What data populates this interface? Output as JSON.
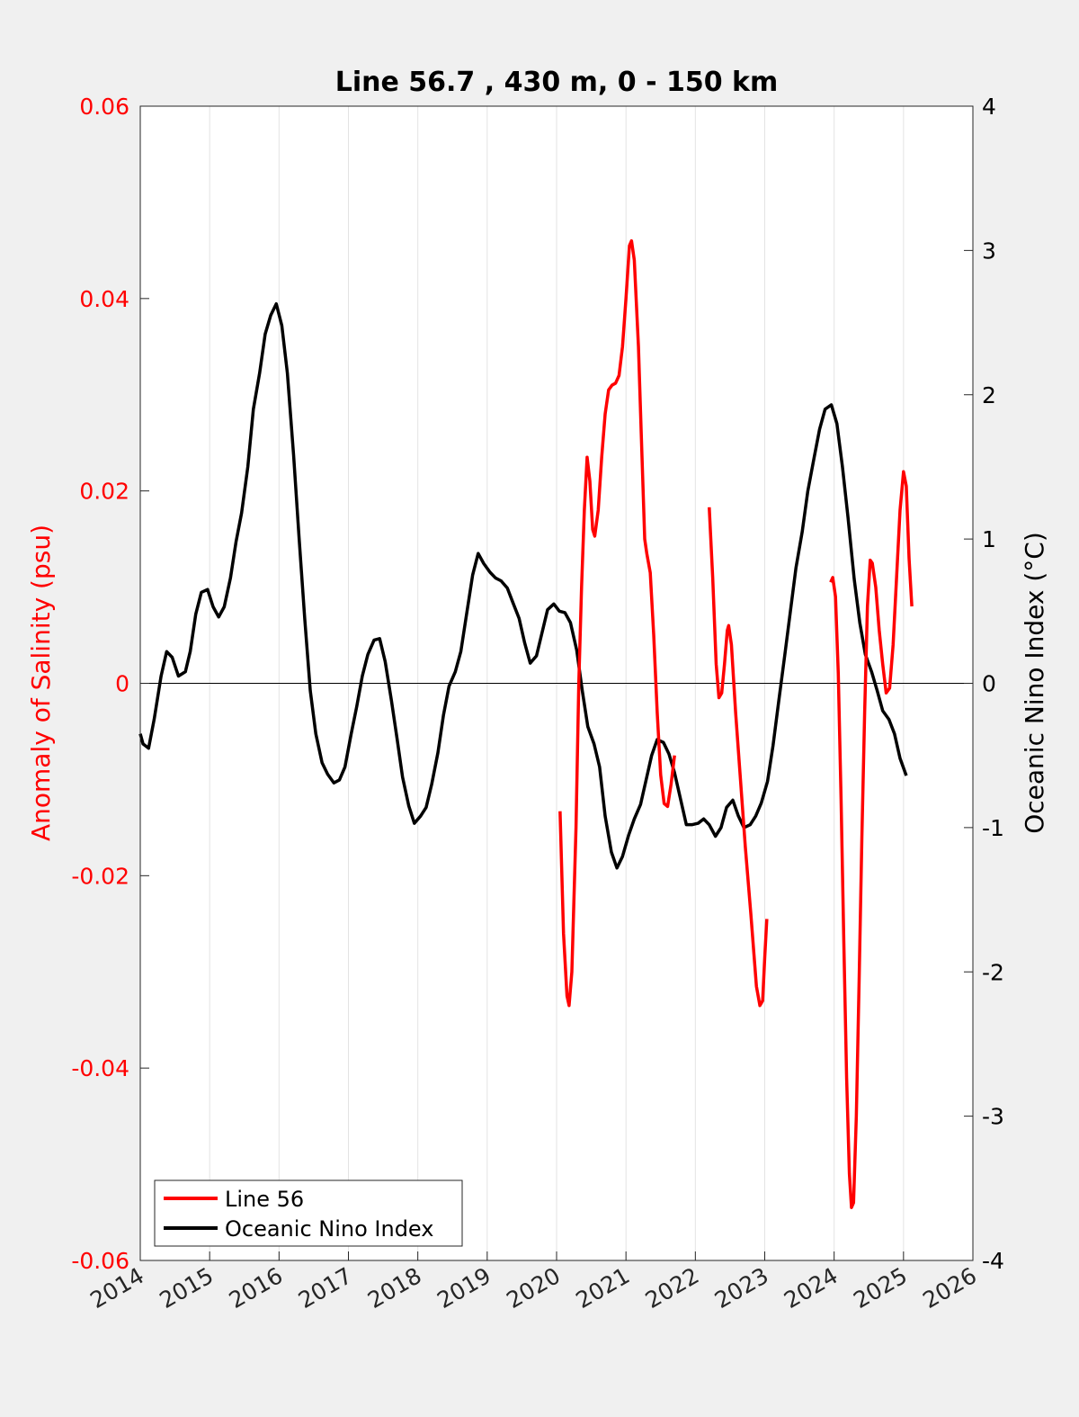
{
  "chart_data": {
    "type": "line",
    "title": "Line 56.7 , 430 m, 0 - 150 km",
    "xlabel": "",
    "ylabel_left": "Anomaly of Salinity (psu)",
    "ylabel_right": "Oceanic Nino Index (°C)",
    "xlim": [
      2014,
      2026
    ],
    "ylim_left": [
      -0.06,
      0.06
    ],
    "ylim_right": [
      -4,
      4
    ],
    "x_ticks": [
      "2014",
      "2015",
      "2016",
      "2017",
      "2018",
      "2019",
      "2020",
      "2021",
      "2022",
      "2023",
      "2024",
      "2025",
      "2026"
    ],
    "y_left_ticks": [
      "-0.06",
      "-0.04",
      "-0.02",
      "0",
      "0.02",
      "0.04",
      "0.06"
    ],
    "y_right_ticks": [
      "-4",
      "-3",
      "-2",
      "-1",
      "0",
      "1",
      "2",
      "3",
      "4"
    ],
    "grid": "vertical",
    "legend_position": "bottom-left",
    "colors": {
      "salinity": "#ff0000",
      "oni": "#000000",
      "left_axis": "#ff0000",
      "right_axis": "#000000"
    },
    "series": [
      {
        "name": "Line 56",
        "axis": "left",
        "segments": [
          [
            [
              2020.05,
              -0.0133
            ],
            [
              2020.1,
              -0.026
            ],
            [
              2020.15,
              -0.0325
            ],
            [
              2020.18,
              -0.0335
            ],
            [
              2020.22,
              -0.03
            ],
            [
              2020.28,
              -0.015
            ],
            [
              2020.32,
              0.0
            ],
            [
              2020.36,
              0.01
            ],
            [
              2020.4,
              0.018
            ],
            [
              2020.44,
              0.0235
            ],
            [
              2020.48,
              0.021
            ],
            [
              2020.52,
              0.016
            ],
            [
              2020.55,
              0.0153
            ],
            [
              2020.6,
              0.018
            ],
            [
              2020.65,
              0.0235
            ],
            [
              2020.7,
              0.028
            ],
            [
              2020.75,
              0.0305
            ],
            [
              2020.8,
              0.031
            ],
            [
              2020.85,
              0.0312
            ],
            [
              2020.9,
              0.032
            ],
            [
              2020.95,
              0.035
            ],
            [
              2021.0,
              0.04
            ],
            [
              2021.05,
              0.0455
            ],
            [
              2021.08,
              0.046
            ],
            [
              2021.12,
              0.044
            ],
            [
              2021.18,
              0.035
            ],
            [
              2021.22,
              0.026
            ],
            [
              2021.27,
              0.015
            ],
            [
              2021.3,
              0.0135
            ],
            [
              2021.35,
              0.0115
            ],
            [
              2021.4,
              0.005
            ],
            [
              2021.45,
              -0.003
            ],
            [
              2021.5,
              -0.0095
            ],
            [
              2021.55,
              -0.0125
            ],
            [
              2021.6,
              -0.0128
            ],
            [
              2021.65,
              -0.0105
            ],
            [
              2021.7,
              -0.0075
            ]
          ],
          [
            [
              2022.2,
              0.0183
            ],
            [
              2022.25,
              0.011
            ],
            [
              2022.3,
              0.002
            ],
            [
              2022.34,
              -0.0015
            ],
            [
              2022.38,
              -0.001
            ],
            [
              2022.42,
              0.002
            ],
            [
              2022.46,
              0.0055
            ],
            [
              2022.48,
              0.006
            ],
            [
              2022.52,
              0.004
            ],
            [
              2022.58,
              -0.003
            ],
            [
              2022.65,
              -0.01
            ],
            [
              2022.72,
              -0.017
            ],
            [
              2022.8,
              -0.024
            ],
            [
              2022.88,
              -0.0315
            ],
            [
              2022.93,
              -0.0335
            ],
            [
              2022.97,
              -0.033
            ],
            [
              2023.0,
              -0.0285
            ],
            [
              2023.03,
              -0.0245
            ]
          ],
          [
            [
              2023.95,
              0.0105
            ],
            [
              2023.98,
              0.011
            ],
            [
              2024.02,
              0.009
            ],
            [
              2024.06,
              0.001
            ],
            [
              2024.1,
              -0.012
            ],
            [
              2024.14,
              -0.027
            ],
            [
              2024.18,
              -0.041
            ],
            [
              2024.22,
              -0.051
            ],
            [
              2024.25,
              -0.0545
            ],
            [
              2024.28,
              -0.054
            ],
            [
              2024.32,
              -0.045
            ],
            [
              2024.36,
              -0.031
            ],
            [
              2024.4,
              -0.016
            ],
            [
              2024.44,
              -0.003
            ],
            [
              2024.48,
              0.008
            ],
            [
              2024.52,
              0.0128
            ],
            [
              2024.55,
              0.0125
            ],
            [
              2024.6,
              0.01
            ],
            [
              2024.65,
              0.0055
            ],
            [
              2024.7,
              0.002
            ],
            [
              2024.75,
              -0.001
            ],
            [
              2024.8,
              -0.0005
            ],
            [
              2024.85,
              0.004
            ],
            [
              2024.9,
              0.011
            ],
            [
              2024.95,
              0.018
            ],
            [
              2025.0,
              0.022
            ],
            [
              2025.04,
              0.0205
            ],
            [
              2025.08,
              0.013
            ],
            [
              2025.12,
              0.008
            ]
          ]
        ]
      },
      {
        "name": "Oceanic Nino Index",
        "axis": "right",
        "points": [
          [
            2014.0,
            -0.35
          ],
          [
            2014.04,
            -0.42
          ],
          [
            2014.12,
            -0.45
          ],
          [
            2014.2,
            -0.25
          ],
          [
            2014.3,
            0.05
          ],
          [
            2014.38,
            0.22
          ],
          [
            2014.46,
            0.18
          ],
          [
            2014.55,
            0.05
          ],
          [
            2014.65,
            0.08
          ],
          [
            2014.72,
            0.22
          ],
          [
            2014.8,
            0.48
          ],
          [
            2014.88,
            0.63
          ],
          [
            2014.97,
            0.65
          ],
          [
            2015.05,
            0.53
          ],
          [
            2015.13,
            0.46
          ],
          [
            2015.21,
            0.53
          ],
          [
            2015.3,
            0.73
          ],
          [
            2015.38,
            0.98
          ],
          [
            2015.46,
            1.18
          ],
          [
            2015.55,
            1.5
          ],
          [
            2015.63,
            1.9
          ],
          [
            2015.72,
            2.15
          ],
          [
            2015.8,
            2.42
          ],
          [
            2015.88,
            2.55
          ],
          [
            2015.96,
            2.63
          ],
          [
            2016.04,
            2.48
          ],
          [
            2016.12,
            2.15
          ],
          [
            2016.21,
            1.58
          ],
          [
            2016.29,
            1.0
          ],
          [
            2016.37,
            0.45
          ],
          [
            2016.45,
            -0.05
          ],
          [
            2016.53,
            -0.35
          ],
          [
            2016.62,
            -0.55
          ],
          [
            2016.7,
            -0.63
          ],
          [
            2016.79,
            -0.69
          ],
          [
            2016.87,
            -0.67
          ],
          [
            2016.95,
            -0.58
          ],
          [
            2017.04,
            -0.35
          ],
          [
            2017.12,
            -0.16
          ],
          [
            2017.2,
            0.05
          ],
          [
            2017.28,
            0.2
          ],
          [
            2017.37,
            0.3
          ],
          [
            2017.45,
            0.31
          ],
          [
            2017.53,
            0.15
          ],
          [
            2017.62,
            -0.12
          ],
          [
            2017.7,
            -0.38
          ],
          [
            2017.78,
            -0.65
          ],
          [
            2017.87,
            -0.85
          ],
          [
            2017.95,
            -0.97
          ],
          [
            2018.04,
            -0.92
          ],
          [
            2018.12,
            -0.86
          ],
          [
            2018.2,
            -0.7
          ],
          [
            2018.29,
            -0.48
          ],
          [
            2018.37,
            -0.22
          ],
          [
            2018.45,
            -0.02
          ],
          [
            2018.54,
            0.08
          ],
          [
            2018.62,
            0.22
          ],
          [
            2018.7,
            0.47
          ],
          [
            2018.79,
            0.75
          ],
          [
            2018.87,
            0.9
          ],
          [
            2018.95,
            0.83
          ],
          [
            2019.04,
            0.77
          ],
          [
            2019.12,
            0.73
          ],
          [
            2019.2,
            0.71
          ],
          [
            2019.29,
            0.66
          ],
          [
            2019.37,
            0.56
          ],
          [
            2019.46,
            0.45
          ],
          [
            2019.54,
            0.28
          ],
          [
            2019.62,
            0.14
          ],
          [
            2019.71,
            0.19
          ],
          [
            2019.79,
            0.35
          ],
          [
            2019.87,
            0.51
          ],
          [
            2019.96,
            0.55
          ],
          [
            2020.04,
            0.5
          ],
          [
            2020.12,
            0.49
          ],
          [
            2020.2,
            0.42
          ],
          [
            2020.29,
            0.23
          ],
          [
            2020.37,
            -0.05
          ],
          [
            2020.45,
            -0.3
          ],
          [
            2020.54,
            -0.42
          ],
          [
            2020.62,
            -0.58
          ],
          [
            2020.7,
            -0.92
          ],
          [
            2020.79,
            -1.17
          ],
          [
            2020.87,
            -1.28
          ],
          [
            2020.95,
            -1.2
          ],
          [
            2021.04,
            -1.05
          ],
          [
            2021.12,
            -0.94
          ],
          [
            2021.21,
            -0.84
          ],
          [
            2021.29,
            -0.67
          ],
          [
            2021.37,
            -0.5
          ],
          [
            2021.45,
            -0.39
          ],
          [
            2021.54,
            -0.41
          ],
          [
            2021.62,
            -0.49
          ],
          [
            2021.7,
            -0.62
          ],
          [
            2021.79,
            -0.81
          ],
          [
            2021.87,
            -0.98
          ],
          [
            2021.95,
            -0.98
          ],
          [
            2022.04,
            -0.97
          ],
          [
            2022.12,
            -0.94
          ],
          [
            2022.2,
            -0.98
          ],
          [
            2022.29,
            -1.06
          ],
          [
            2022.37,
            -1.0
          ],
          [
            2022.45,
            -0.86
          ],
          [
            2022.54,
            -0.81
          ],
          [
            2022.62,
            -0.92
          ],
          [
            2022.7,
            -1.0
          ],
          [
            2022.79,
            -0.98
          ],
          [
            2022.87,
            -0.92
          ],
          [
            2022.95,
            -0.83
          ],
          [
            2023.04,
            -0.68
          ],
          [
            2023.12,
            -0.43
          ],
          [
            2023.2,
            -0.13
          ],
          [
            2023.29,
            0.2
          ],
          [
            2023.37,
            0.5
          ],
          [
            2023.45,
            0.8
          ],
          [
            2023.54,
            1.05
          ],
          [
            2023.62,
            1.33
          ],
          [
            2023.71,
            1.56
          ],
          [
            2023.79,
            1.76
          ],
          [
            2023.87,
            1.9
          ],
          [
            2023.96,
            1.93
          ],
          [
            2024.04,
            1.8
          ],
          [
            2024.12,
            1.5
          ],
          [
            2024.2,
            1.15
          ],
          [
            2024.29,
            0.72
          ],
          [
            2024.37,
            0.42
          ],
          [
            2024.45,
            0.2
          ],
          [
            2024.54,
            0.08
          ],
          [
            2024.62,
            -0.05
          ],
          [
            2024.7,
            -0.19
          ],
          [
            2024.79,
            -0.25
          ],
          [
            2024.87,
            -0.35
          ],
          [
            2024.95,
            -0.52
          ],
          [
            2025.04,
            -0.64
          ]
        ]
      }
    ]
  }
}
